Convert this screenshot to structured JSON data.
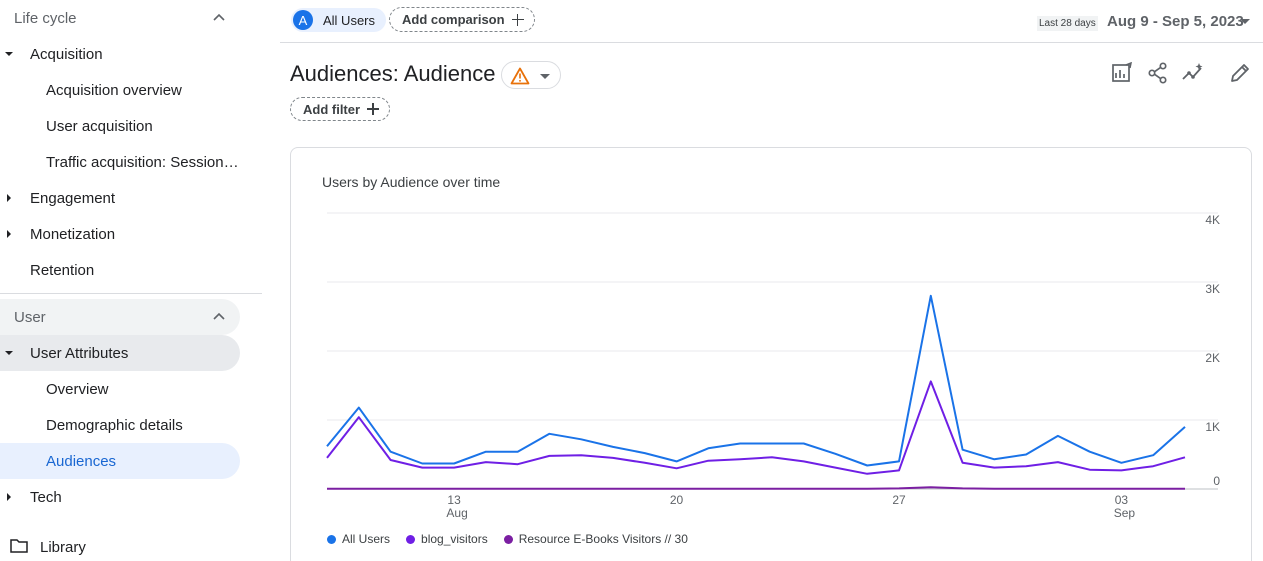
{
  "sidebar": {
    "lifecycle": {
      "title": "Life cycle",
      "acquisition": "Acquisition",
      "acquisition_items": [
        "Acquisition overview",
        "User acquisition",
        "Traffic acquisition: Session…"
      ],
      "engagement": "Engagement",
      "monetization": "Monetization",
      "retention": "Retention"
    },
    "user": {
      "title": "User",
      "user_attributes": "User Attributes",
      "attr_items": [
        "Overview",
        "Demographic details",
        "Audiences"
      ],
      "tech": "Tech"
    },
    "library": "Library"
  },
  "topbar": {
    "comparison_avatar": "A",
    "comparison_chip": "All Users",
    "add_comparison": "Add comparison",
    "date_range_label": "Last 28 days",
    "date_range_value": "Aug 9 - Sep 5, 2023"
  },
  "page": {
    "title": "Audiences: Audience",
    "add_filter": "Add filter"
  },
  "colors": {
    "accent": "#1a73e8",
    "all_users": "#1a73e8",
    "blog_visitors": "#6f1fe5",
    "ebooks": "#7b1fa2",
    "warning": "#e8710a"
  },
  "chart_data": {
    "type": "line",
    "title": "Users by Audience over time",
    "x": [
      "Aug 9",
      "Aug 10",
      "Aug 11",
      "Aug 12",
      "Aug 13",
      "Aug 14",
      "Aug 15",
      "Aug 16",
      "Aug 17",
      "Aug 18",
      "Aug 19",
      "Aug 20",
      "Aug 21",
      "Aug 22",
      "Aug 23",
      "Aug 24",
      "Aug 25",
      "Aug 26",
      "Aug 27",
      "Aug 28",
      "Aug 29",
      "Aug 30",
      "Aug 31",
      "Sep 1",
      "Sep 2",
      "Sep 3",
      "Sep 4",
      "Sep 5"
    ],
    "x_ticks": [
      {
        "label": "13",
        "sub": "Aug",
        "index": 4
      },
      {
        "label": "20",
        "sub": "",
        "index": 11
      },
      {
        "label": "27",
        "sub": "",
        "index": 18
      },
      {
        "label": "03",
        "sub": "Sep",
        "index": 25
      }
    ],
    "y_ticks": [
      "0",
      "1K",
      "2K",
      "3K",
      "4K"
    ],
    "ylim": [
      0,
      4000
    ],
    "series": [
      {
        "name": "All Users",
        "values": [
          620,
          1180,
          540,
          370,
          370,
          540,
          540,
          800,
          720,
          610,
          520,
          400,
          590,
          660,
          660,
          660,
          510,
          340,
          400,
          2800,
          570,
          430,
          500,
          770,
          540,
          380,
          490,
          900
        ]
      },
      {
        "name": "blog_visitors",
        "values": [
          450,
          1040,
          420,
          310,
          310,
          390,
          360,
          480,
          490,
          450,
          380,
          300,
          410,
          430,
          460,
          400,
          310,
          220,
          270,
          1560,
          380,
          310,
          330,
          390,
          280,
          270,
          330,
          460
        ]
      },
      {
        "name": "Resource E-Books Visitors // 30",
        "values": [
          5,
          5,
          5,
          5,
          5,
          5,
          5,
          5,
          5,
          5,
          5,
          5,
          5,
          5,
          5,
          5,
          5,
          5,
          8,
          25,
          8,
          5,
          5,
          5,
          5,
          5,
          5,
          5
        ]
      }
    ],
    "legend": "bottom-left",
    "grid": true
  }
}
